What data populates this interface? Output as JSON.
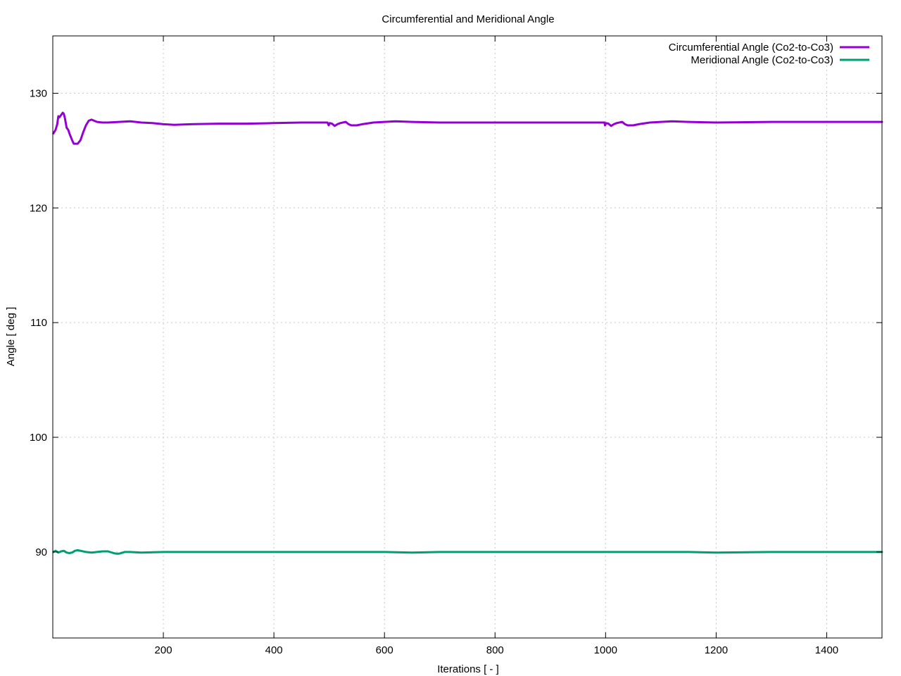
{
  "chart_data": {
    "type": "line",
    "title": "Circumferential and Meridional Angle",
    "xlabel": "Iterations [ - ]",
    "ylabel": "Angle [ deg ]",
    "xlim": [
      0,
      1500
    ],
    "ylim": [
      82.5,
      135
    ],
    "xticks": [
      200,
      400,
      600,
      800,
      1000,
      1200,
      1400
    ],
    "yticks": [
      90,
      100,
      110,
      120,
      130
    ],
    "grid": true,
    "legend_position": "top-right",
    "series": [
      {
        "name": "Circumferential Angle (Co2-to-Co3)",
        "color": "#9400d3",
        "x": [
          1,
          5,
          8,
          10,
          12,
          15,
          18,
          20,
          22,
          25,
          28,
          30,
          35,
          38,
          42,
          45,
          50,
          55,
          60,
          65,
          70,
          75,
          80,
          90,
          100,
          120,
          140,
          160,
          180,
          200,
          220,
          250,
          300,
          350,
          400,
          450,
          497,
          499,
          501,
          505,
          510,
          515,
          520,
          530,
          535,
          540,
          550,
          560,
          580,
          600,
          620,
          650,
          700,
          800,
          900,
          998,
          999,
          1001,
          1005,
          1010,
          1015,
          1020,
          1030,
          1035,
          1040,
          1050,
          1060,
          1080,
          1100,
          1120,
          1150,
          1200,
          1300,
          1400,
          1500
        ],
        "y": [
          126.5,
          126.8,
          127.3,
          128.0,
          127.9,
          128.1,
          128.3,
          128.2,
          127.8,
          127.0,
          126.8,
          126.5,
          125.9,
          125.6,
          125.6,
          125.6,
          125.9,
          126.6,
          127.2,
          127.6,
          127.7,
          127.6,
          127.5,
          127.45,
          127.45,
          127.5,
          127.55,
          127.45,
          127.4,
          127.3,
          127.25,
          127.3,
          127.35,
          127.35,
          127.4,
          127.45,
          127.45,
          127.2,
          127.4,
          127.35,
          127.15,
          127.3,
          127.4,
          127.5,
          127.3,
          127.2,
          127.2,
          127.3,
          127.45,
          127.5,
          127.55,
          127.5,
          127.45,
          127.45,
          127.45,
          127.45,
          127.2,
          127.4,
          127.35,
          127.15,
          127.3,
          127.4,
          127.5,
          127.3,
          127.2,
          127.2,
          127.3,
          127.45,
          127.5,
          127.55,
          127.5,
          127.45,
          127.5,
          127.5,
          127.5
        ]
      },
      {
        "name": "Meridional Angle (Co2-to-Co3)",
        "color": "#009e73",
        "x": [
          1,
          5,
          10,
          15,
          20,
          25,
          30,
          35,
          40,
          45,
          50,
          60,
          70,
          80,
          90,
          100,
          110,
          115,
          120,
          130,
          140,
          160,
          200,
          250,
          300,
          400,
          500,
          550,
          600,
          650,
          700,
          750,
          800,
          900,
          1000,
          1050,
          1100,
          1150,
          1200,
          1300,
          1400,
          1500
        ],
        "y": [
          90.0,
          90.1,
          89.95,
          90.05,
          90.1,
          89.95,
          89.9,
          89.95,
          90.1,
          90.15,
          90.1,
          90.0,
          89.95,
          90.0,
          90.05,
          90.05,
          89.9,
          89.85,
          89.85,
          90.0,
          90.0,
          89.95,
          90.0,
          90.0,
          90.0,
          90.0,
          90.0,
          90.0,
          90.0,
          89.95,
          90.0,
          90.0,
          90.0,
          90.0,
          90.0,
          90.0,
          90.0,
          90.0,
          89.95,
          90.0,
          90.0,
          90.0
        ]
      }
    ]
  }
}
